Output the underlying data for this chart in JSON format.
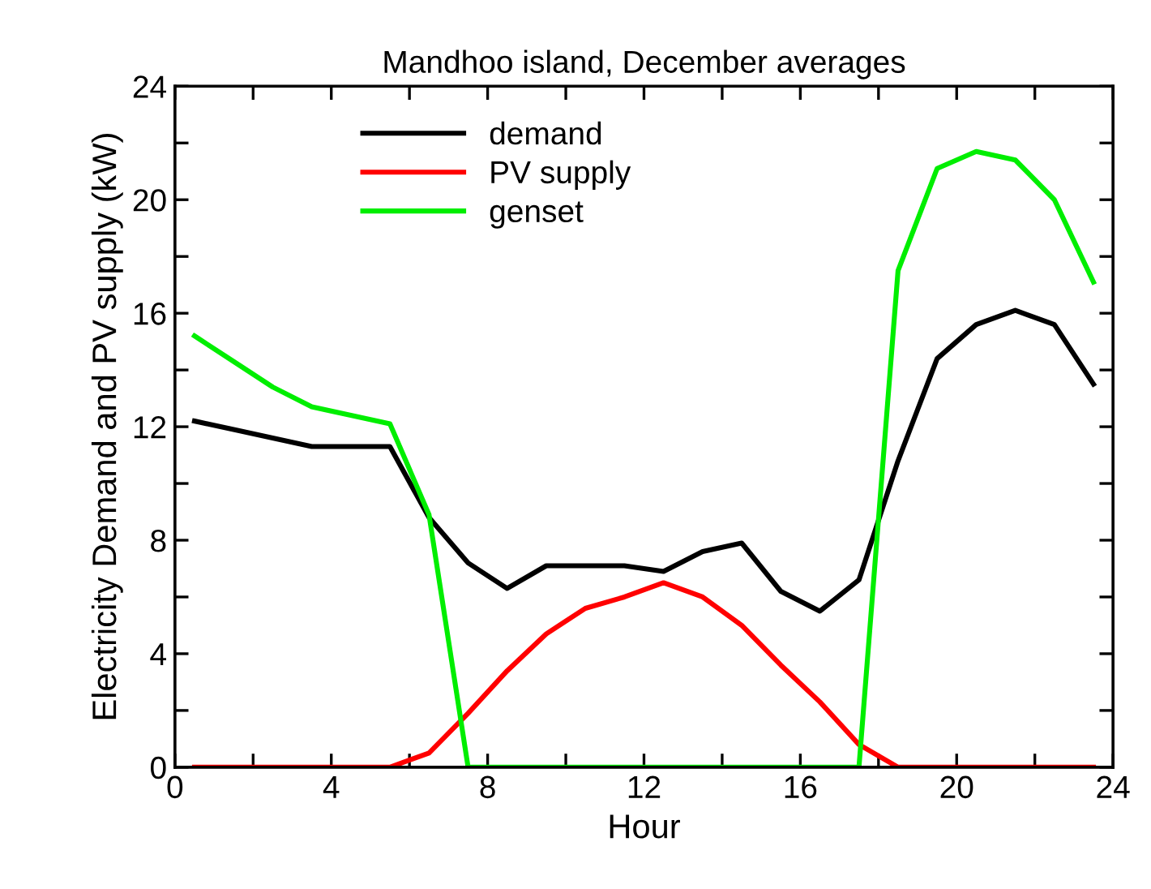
{
  "chart_data": {
    "type": "line",
    "title": "Mandhoo island, December averages",
    "xlabel": "Hour",
    "ylabel": "Electricity Demand and PV supply (kW)",
    "x": [
      0.5,
      1.5,
      2.5,
      3.5,
      4.5,
      5.5,
      6.5,
      7.5,
      8.5,
      9.5,
      10.5,
      11.5,
      12.5,
      13.5,
      14.5,
      15.5,
      16.5,
      17.5,
      18.5,
      19.5,
      20.5,
      21.5,
      22.5,
      23.5
    ],
    "series": [
      {
        "name": "demand",
        "color": "#000000",
        "values": [
          12.2,
          11.9,
          11.6,
          11.3,
          11.3,
          11.3,
          8.8,
          7.2,
          6.3,
          7.1,
          7.1,
          7.1,
          6.9,
          7.6,
          7.9,
          6.2,
          5.5,
          6.6,
          10.8,
          14.4,
          15.6,
          16.1,
          15.6,
          13.5
        ]
      },
      {
        "name": "PV supply",
        "color": "#ff0000",
        "values": [
          0,
          0,
          0,
          0,
          0,
          0,
          0.5,
          1.9,
          3.4,
          4.7,
          5.6,
          6.0,
          6.5,
          6.0,
          5.0,
          3.6,
          2.3,
          0.8,
          0,
          0,
          0,
          0,
          0,
          0
        ]
      },
      {
        "name": "genset",
        "color": "#00ee00",
        "values": [
          15.2,
          14.3,
          13.4,
          12.7,
          12.4,
          12.1,
          8.9,
          0,
          0,
          0,
          0,
          0,
          0,
          0,
          0,
          0,
          0,
          0,
          17.5,
          21.1,
          21.7,
          21.4,
          20.0,
          17.1
        ]
      }
    ],
    "xlim": [
      0,
      24
    ],
    "ylim": [
      0,
      24
    ],
    "xticks": [
      0,
      {
        "value": 2,
        "label": null
      },
      4,
      {
        "value": 6,
        "label": null
      },
      8,
      {
        "value": 10,
        "label": null
      },
      12,
      {
        "value": 14,
        "label": null
      },
      16,
      {
        "value": 18,
        "label": null
      },
      20,
      {
        "value": 22,
        "label": null
      },
      24
    ],
    "yticks": [
      0,
      {
        "value": 2,
        "label": null
      },
      4,
      {
        "value": 6,
        "label": null
      },
      8,
      {
        "value": 10,
        "label": null
      },
      12,
      {
        "value": 14,
        "label": null
      },
      16,
      {
        "value": 18,
        "label": null
      },
      20,
      {
        "value": 22,
        "label": null
      },
      24
    ],
    "grid": false,
    "legend": "top left",
    "marker": "none",
    "line_style": "solid"
  }
}
